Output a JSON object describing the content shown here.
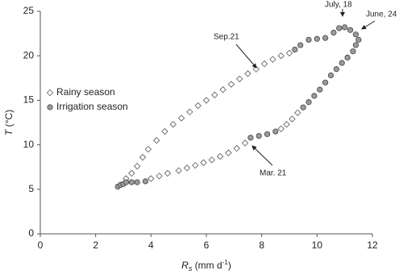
{
  "chart_data": {
    "type": "scatter",
    "x_label": [
      "R",
      "s",
      " (mm d",
      "-1",
      ")"
    ],
    "y_label": [
      "T",
      " (°C)"
    ],
    "xlim": [
      0,
      12
    ],
    "xticks": [
      0,
      2,
      4,
      6,
      8,
      10,
      12
    ],
    "ylim": [
      0,
      25
    ],
    "yticks": [
      0,
      5,
      10,
      15,
      20,
      25
    ],
    "legend": "left",
    "annotations": [
      "July, 18",
      "June, 24",
      "Sep.21",
      "Mar. 21"
    ],
    "series": [
      {
        "name": "Rainy season",
        "marker": "diamond",
        "color": "#ffffff",
        "edge_color": "#555555",
        "x": [
          4.0,
          4.3,
          4.6,
          5.0,
          5.3,
          5.6,
          5.9,
          6.2,
          6.5,
          6.8,
          7.1,
          7.4,
          8.7,
          8.9,
          9.1,
          9.3,
          9.0,
          8.7,
          8.4,
          8.1,
          7.8,
          7.5,
          7.2,
          6.9,
          6.6,
          6.3,
          6.0,
          5.7,
          5.4,
          5.1,
          4.8,
          4.5,
          4.2,
          3.9,
          3.7,
          3.5,
          3.3,
          3.1
        ],
        "y": [
          6.2,
          6.5,
          6.8,
          7.1,
          7.4,
          7.7,
          8.0,
          8.3,
          8.7,
          9.1,
          9.6,
          10.2,
          11.8,
          12.3,
          12.9,
          13.6,
          20.3,
          20.0,
          19.6,
          19.1,
          18.5,
          18.0,
          17.4,
          16.8,
          16.2,
          15.6,
          15.0,
          14.4,
          13.7,
          13.0,
          12.3,
          11.5,
          10.5,
          9.5,
          8.6,
          7.6,
          6.8,
          6.2
        ]
      },
      {
        "name": "Irrigation season",
        "marker": "circle",
        "color": "#9a9a9a",
        "edge_color": "#444444",
        "x": [
          2.8,
          2.9,
          3.0,
          3.1,
          3.3,
          3.5,
          3.8,
          7.6,
          7.9,
          8.2,
          8.5,
          9.5,
          9.7,
          9.9,
          10.1,
          10.3,
          10.5,
          10.7,
          10.9,
          11.1,
          11.3,
          11.4,
          11.5,
          11.4,
          11.2,
          11.0,
          10.8,
          10.6,
          10.3,
          10.0,
          9.7,
          9.4,
          9.2
        ],
        "y": [
          5.3,
          5.5,
          5.6,
          5.8,
          5.8,
          5.8,
          5.9,
          10.8,
          11.0,
          11.2,
          11.5,
          14.2,
          14.8,
          15.5,
          16.2,
          17.0,
          17.8,
          18.5,
          19.2,
          19.8,
          20.5,
          21.2,
          21.8,
          22.4,
          22.9,
          23.2,
          23.1,
          22.6,
          22.0,
          21.9,
          21.8,
          21.2,
          20.7
        ]
      }
    ]
  }
}
